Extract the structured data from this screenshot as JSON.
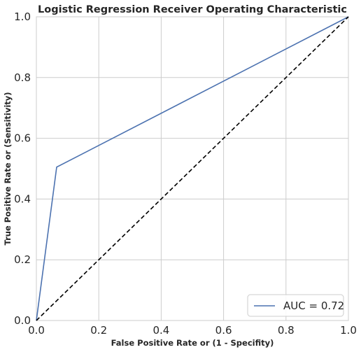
{
  "chart_data": {
    "type": "line",
    "title": "Logistic Regression Receiver Operating Characteristic",
    "xlabel": "False Positive Rate or (1 - Specifity)",
    "ylabel": "True Positive Rate or (Sensitivity)",
    "xlim": [
      0,
      1
    ],
    "ylim": [
      0,
      1
    ],
    "xticks": [
      "0.0",
      "0.2",
      "0.4",
      "0.6",
      "0.8",
      "1.0"
    ],
    "yticks": [
      "0.0",
      "0.2",
      "0.4",
      "0.6",
      "0.8",
      "1.0"
    ],
    "grid": true,
    "legend": {
      "position": "lower-right"
    },
    "series": [
      {
        "name": "AUC = 0.72",
        "x": [
          0.0,
          0.065,
          1.0
        ],
        "y": [
          0.0,
          0.505,
          1.0
        ],
        "color": "#4c72b0",
        "style": "solid"
      },
      {
        "x": [
          0,
          1
        ],
        "y": [
          0,
          1
        ],
        "color": "#000000",
        "style": "dashed"
      }
    ]
  }
}
